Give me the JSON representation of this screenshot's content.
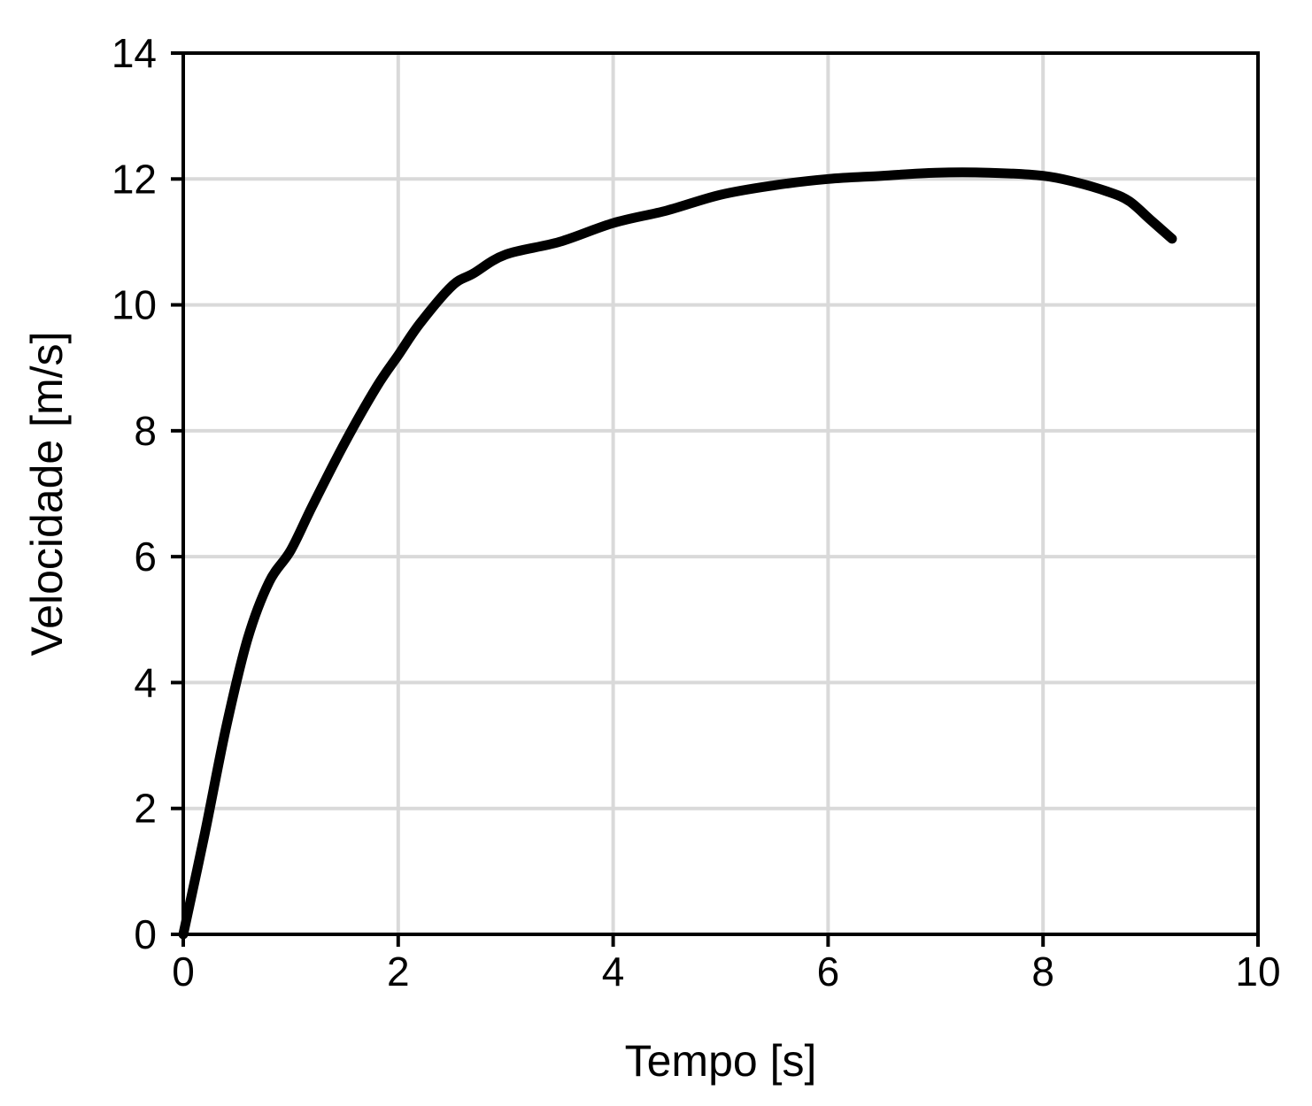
{
  "chart_data": {
    "type": "line",
    "title": "",
    "xlabel": "Tempo [s]",
    "ylabel": "Velocidade [m/s]",
    "xlim": [
      0,
      10
    ],
    "ylim": [
      0,
      14
    ],
    "x_ticks": [
      0,
      2,
      4,
      6,
      8,
      10
    ],
    "y_ticks": [
      0,
      2,
      4,
      6,
      8,
      10,
      12,
      14
    ],
    "x_tick_labels": [
      "0",
      "2",
      "4",
      "6",
      "8",
      "10"
    ],
    "y_tick_labels": [
      "0",
      "2",
      "4",
      "6",
      "8",
      "10",
      "12",
      "14"
    ],
    "grid": true,
    "series": [
      {
        "color": "#000000",
        "x": [
          0,
          0.2,
          0.4,
          0.6,
          0.8,
          1.0,
          1.2,
          1.5,
          1.8,
          2.0,
          2.2,
          2.5,
          2.7,
          3.0,
          3.5,
          4.0,
          4.5,
          5.0,
          5.5,
          6.0,
          6.5,
          7.0,
          7.5,
          8.0,
          8.3,
          8.6,
          8.8,
          9.0,
          9.2
        ],
        "y": [
          0,
          1.6,
          3.3,
          4.7,
          5.6,
          6.1,
          6.8,
          7.8,
          8.7,
          9.2,
          9.7,
          10.3,
          10.5,
          10.8,
          11.0,
          11.3,
          11.5,
          11.75,
          11.9,
          12.0,
          12.05,
          12.1,
          12.1,
          12.05,
          11.95,
          11.8,
          11.65,
          11.35,
          11.05
        ]
      }
    ]
  }
}
